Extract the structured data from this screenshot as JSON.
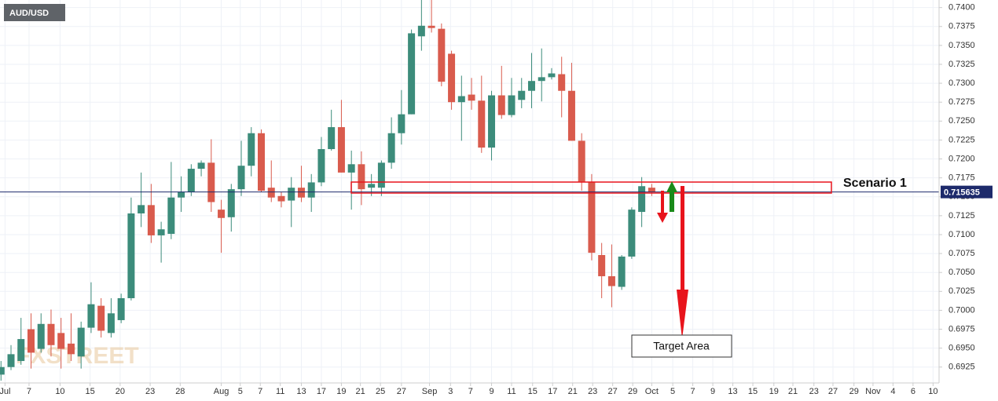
{
  "chart_data": {
    "type": "candlestick",
    "title": "AUD/USD",
    "watermark": "FXSTREET",
    "annotation": "Scenario 1",
    "target_label": "Target Area",
    "last_price": 0.715635,
    "up_color": "#3c8c7b",
    "down_color": "#d95b4d",
    "grid": true,
    "open": [
      0.6915,
      0.6925,
      0.6933,
      0.6975,
      0.6949,
      0.6982,
      0.697,
      0.6956,
      0.6939,
      0.6977,
      0.7006,
      0.697,
      0.6987,
      0.7016,
      0.7128,
      0.7139,
      0.7099,
      0.7101,
      0.7149,
      0.7156,
      0.7187,
      0.7195,
      0.7133,
      0.7123,
      0.716,
      0.7191,
      0.7234,
      0.7162,
      0.7151,
      0.7145,
      0.7162,
      0.7149,
      0.7169,
      0.7213,
      0.7242,
      0.7182,
      0.7193,
      0.7162,
      0.7162,
      0.7195,
      0.7234,
      0.7259,
      0.7362,
      0.7376,
      0.7372,
      0.7339,
      0.7275,
      0.7285,
      0.7277,
      0.7215,
      0.7284,
      0.7258,
      0.7278,
      0.729,
      0.7303,
      0.7308,
      0.7312,
      0.729,
      0.7224,
      0.717,
      0.7073,
      0.7045,
      0.7031,
      0.7071,
      0.713,
      0.7162
    ],
    "high": [
      0.6933,
      0.6954,
      0.699,
      0.6996,
      0.6996,
      0.7001,
      0.699,
      0.6996,
      0.6985,
      0.7037,
      0.7016,
      0.7016,
      0.7022,
      0.7149,
      0.7182,
      0.7167,
      0.7117,
      0.7196,
      0.7177,
      0.7193,
      0.7198,
      0.7226,
      0.7146,
      0.7167,
      0.7224,
      0.7242,
      0.7239,
      0.7198,
      0.7156,
      0.7176,
      0.7191,
      0.718,
      0.7229,
      0.7265,
      0.7278,
      0.7211,
      0.721,
      0.718,
      0.7198,
      0.7255,
      0.7291,
      0.7371,
      0.741,
      0.741,
      0.7379,
      0.7343,
      0.731,
      0.7307,
      0.731,
      0.729,
      0.7323,
      0.7307,
      0.7307,
      0.734,
      0.7346,
      0.732,
      0.7335,
      0.7327,
      0.7234,
      0.718,
      0.7089,
      0.7087,
      0.7073,
      0.7136,
      0.7176,
      0.7167
    ],
    "low": [
      0.6907,
      0.6921,
      0.6928,
      0.6923,
      0.6944,
      0.6939,
      0.6923,
      0.6933,
      0.6923,
      0.697,
      0.6964,
      0.6964,
      0.6983,
      0.7013,
      0.711,
      0.7089,
      0.7063,
      0.7094,
      0.713,
      0.7151,
      0.7177,
      0.713,
      0.7076,
      0.7104,
      0.7151,
      0.7177,
      0.7156,
      0.7143,
      0.7136,
      0.711,
      0.7143,
      0.713,
      0.7164,
      0.7211,
      0.7182,
      0.7133,
      0.7139,
      0.7151,
      0.7151,
      0.7187,
      0.7219,
      0.7259,
      0.7343,
      0.7367,
      0.7296,
      0.7265,
      0.7224,
      0.7265,
      0.7208,
      0.7198,
      0.7253,
      0.7255,
      0.7267,
      0.7267,
      0.7276,
      0.7305,
      0.7255,
      0.7224,
      0.7158,
      0.7066,
      0.7016,
      0.7004,
      0.7027,
      0.7068,
      0.711,
      0.7151
    ],
    "close": [
      0.6925,
      0.6942,
      0.6962,
      0.6944,
      0.6982,
      0.6954,
      0.6949,
      0.6942,
      0.6977,
      0.7008,
      0.6973,
      0.6996,
      0.7016,
      0.7128,
      0.7139,
      0.7099,
      0.7107,
      0.7149,
      0.7156,
      0.7187,
      0.7195,
      0.7143,
      0.7122,
      0.716,
      0.7191,
      0.7234,
      0.7158,
      0.7149,
      0.7144,
      0.7162,
      0.7149,
      0.7169,
      0.7213,
      0.7242,
      0.7182,
      0.7193,
      0.716,
      0.7167,
      0.7195,
      0.7234,
      0.7259,
      0.7366,
      0.7376,
      0.7373,
      0.7302,
      0.7275,
      0.7283,
      0.7277,
      0.7215,
      0.7284,
      0.7258,
      0.7284,
      0.729,
      0.7303,
      0.7308,
      0.7313,
      0.729,
      0.7224,
      0.717,
      0.7076,
      0.7045,
      0.7032,
      0.7071,
      0.7133,
      0.7164,
      0.7156
    ],
    "xlim": [
      -0.1,
      93.7
    ],
    "xticks": [
      {
        "value": 0.4,
        "label": "Jul"
      },
      {
        "value": 2.8,
        "label": "7"
      },
      {
        "value": 5.9,
        "label": "10"
      },
      {
        "value": 8.9,
        "label": "15"
      },
      {
        "value": 11.9,
        "label": "20"
      },
      {
        "value": 14.9,
        "label": "23"
      },
      {
        "value": 17.9,
        "label": "28"
      },
      {
        "value": 22.0,
        "label": "Aug"
      },
      {
        "value": 23.9,
        "label": "5"
      },
      {
        "value": 25.9,
        "label": "7"
      },
      {
        "value": 27.9,
        "label": "11"
      },
      {
        "value": 30.0,
        "label": "13"
      },
      {
        "value": 32.0,
        "label": "17"
      },
      {
        "value": 34.0,
        "label": "19"
      },
      {
        "value": 35.9,
        "label": "21"
      },
      {
        "value": 37.9,
        "label": "25"
      },
      {
        "value": 40.0,
        "label": "27"
      },
      {
        "value": 42.8,
        "label": "Sep"
      },
      {
        "value": 44.9,
        "label": "3"
      },
      {
        "value": 46.9,
        "label": "7"
      },
      {
        "value": 49.0,
        "label": "9"
      },
      {
        "value": 51.0,
        "label": "11"
      },
      {
        "value": 53.1,
        "label": "15"
      },
      {
        "value": 55.1,
        "label": "17"
      },
      {
        "value": 57.1,
        "label": "21"
      },
      {
        "value": 59.1,
        "label": "23"
      },
      {
        "value": 61.1,
        "label": "27"
      },
      {
        "value": 63.1,
        "label": "29"
      },
      {
        "value": 65.0,
        "label": "Oct"
      },
      {
        "value": 67.1,
        "label": "5"
      },
      {
        "value": 69.1,
        "label": "7"
      },
      {
        "value": 71.1,
        "label": "9"
      },
      {
        "value": 73.1,
        "label": "13"
      },
      {
        "value": 75.1,
        "label": "15"
      },
      {
        "value": 77.2,
        "label": "19"
      },
      {
        "value": 79.1,
        "label": "21"
      },
      {
        "value": 81.2,
        "label": "23"
      },
      {
        "value": 83.1,
        "label": "27"
      },
      {
        "value": 85.2,
        "label": "29"
      },
      {
        "value": 87.1,
        "label": "Nov"
      },
      {
        "value": 89.1,
        "label": "4"
      },
      {
        "value": 91.1,
        "label": "6"
      },
      {
        "value": 93.1,
        "label": "10"
      }
    ],
    "ylim": [
      0.6904,
      0.741
    ],
    "yticks": [
      {
        "value": 0.74,
        "label": "0.7400"
      },
      0.7375,
      {
        "value": 0.735,
        "label": "0.7350"
      },
      0.7325,
      {
        "value": 0.73,
        "label": "0.7300"
      },
      0.7275,
      {
        "value": 0.725,
        "label": "0.7250"
      },
      0.7225,
      {
        "value": 0.72,
        "label": "0.7200"
      },
      0.7175,
      {
        "value": 0.715,
        "label": "0.7150"
      },
      0.7125,
      {
        "value": 0.71,
        "label": "0.7100"
      },
      0.7075,
      {
        "value": 0.705,
        "label": "0.7050"
      },
      0.7025,
      {
        "value": 0.7,
        "label": "0.7000"
      },
      0.6975,
      {
        "value": 0.695,
        "label": "0.6950"
      },
      0.6925
    ]
  }
}
